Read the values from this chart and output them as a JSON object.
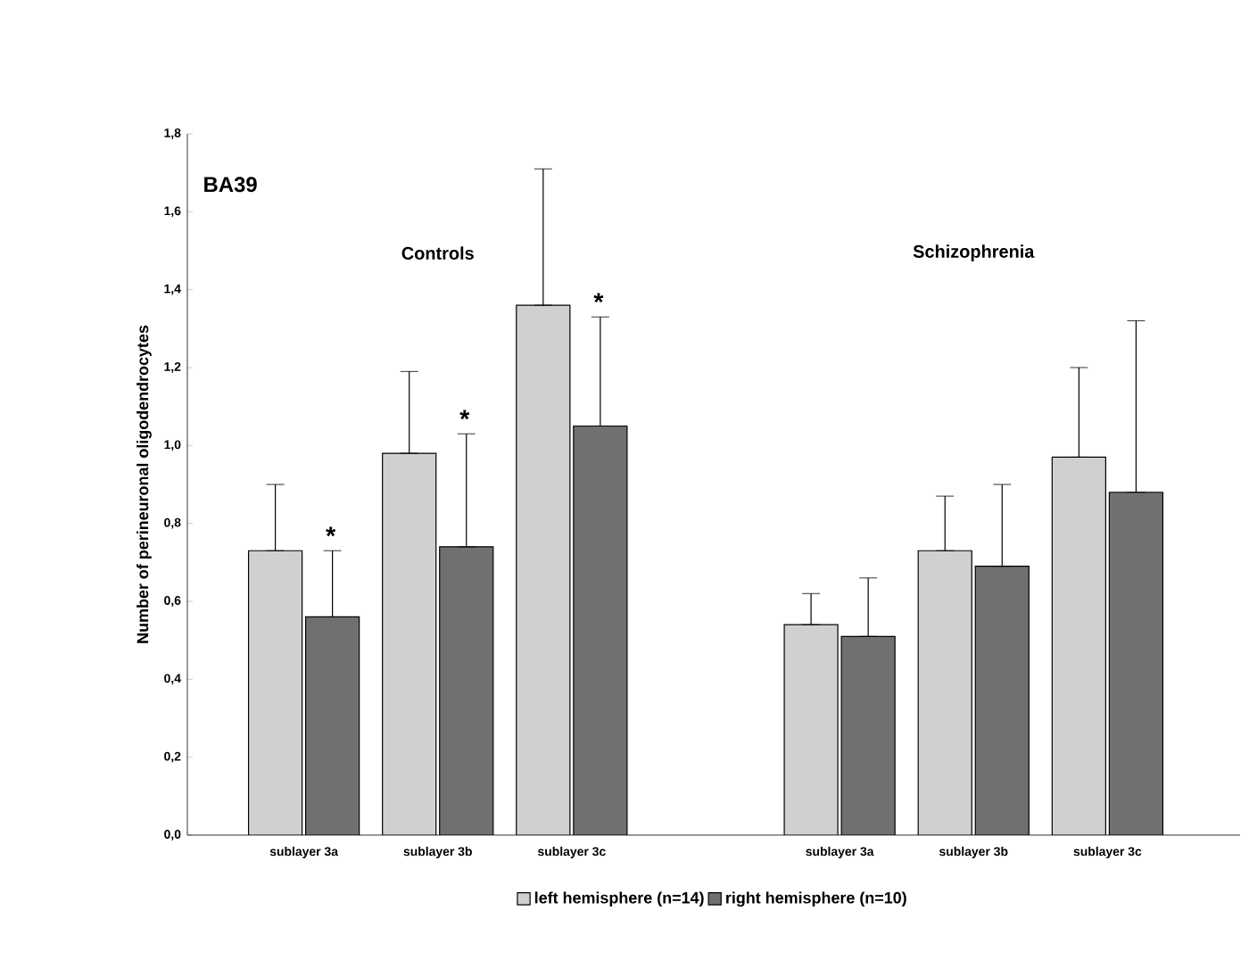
{
  "chart_data": {
    "type": "bar",
    "title": "BA39",
    "ylabel": "Number of perineuronal oligodendrocytes",
    "categories": [
      "sublayer 3a",
      "sublayer 3b",
      "sublayer 3c",
      null,
      "sublayer 3a",
      "sublayer 3b",
      "sublayer 3c"
    ],
    "series": [
      {
        "name": "left hemisphere (n=14)",
        "color": "#d0d0d0",
        "values": [
          0.73,
          0.98,
          1.36,
          null,
          0.54,
          0.73,
          0.97
        ],
        "errors": [
          [
            0.73,
            0.9
          ],
          [
            0.98,
            1.19
          ],
          [
            1.36,
            1.71
          ],
          null,
          [
            0.54,
            0.62
          ],
          [
            0.73,
            0.87
          ],
          [
            0.97,
            1.2
          ]
        ]
      },
      {
        "name": "right hemisphere (n=10)",
        "color": "#707070",
        "values": [
          0.56,
          0.74,
          1.05,
          null,
          0.51,
          0.69,
          0.88
        ],
        "errors": [
          [
            0.56,
            0.73
          ],
          [
            0.74,
            1.03
          ],
          [
            1.05,
            1.33
          ],
          null,
          [
            0.51,
            0.66
          ],
          [
            0.69,
            0.9
          ],
          [
            0.88,
            1.32
          ]
        ]
      }
    ],
    "ylim": [
      0,
      1.8
    ],
    "yticks": [
      {
        "value": 0,
        "label": "0,0"
      },
      {
        "value": 0.2,
        "label": "0,2"
      },
      {
        "value": 0.4,
        "label": "0,4"
      },
      {
        "value": 0.6,
        "label": "0,6"
      },
      {
        "value": 0.8,
        "label": "0,8"
      },
      {
        "value": 1.0,
        "label": "1,0"
      },
      {
        "value": 1.2,
        "label": "1,2"
      },
      {
        "value": 1.4,
        "label": "1,4"
      },
      {
        "value": 1.6,
        "label": "1,6"
      },
      {
        "value": 1.8,
        "label": "1,8"
      }
    ],
    "annotations": [
      "Controls",
      "Schizophrenia",
      "*",
      "*",
      "*"
    ],
    "grid": false,
    "legend": "bottom"
  }
}
